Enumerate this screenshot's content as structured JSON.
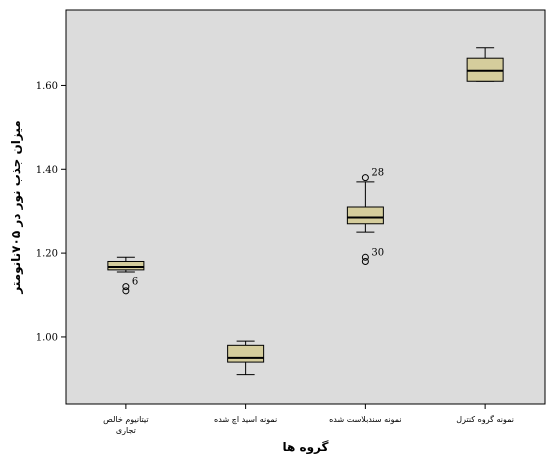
{
  "chart_data": {
    "type": "boxplot",
    "xlabel": "گروه ها",
    "ylabel": "میزان جذب نور در ۷۰۵نانومتر",
    "ylim": [
      0.84,
      1.78
    ],
    "yticks": [
      "1.00",
      "1.20",
      "1.40",
      "1.60"
    ],
    "colors": {
      "plot_bg": "#dcdcdc",
      "box_fill": "#d5cd9c",
      "stroke": "#000000"
    },
    "categories": [
      {
        "label_lines": [
          "تیتانیوم خالص",
          "تجاری"
        ],
        "min": 1.155,
        "q1": 1.16,
        "median": 1.167,
        "q3": 1.18,
        "max": 1.19,
        "outliers": [
          {
            "value": 1.12,
            "label": "6"
          },
          {
            "value": 1.11,
            "label": ""
          }
        ]
      },
      {
        "label_lines": [
          "نمونه اسید اچ شده"
        ],
        "min": 0.91,
        "q1": 0.94,
        "median": 0.95,
        "q3": 0.98,
        "max": 0.99,
        "outliers": []
      },
      {
        "label_lines": [
          "نمونه سندبلاست شده"
        ],
        "min": 1.25,
        "q1": 1.27,
        "median": 1.285,
        "q3": 1.31,
        "max": 1.37,
        "outliers": [
          {
            "value": 1.38,
            "label": "28"
          },
          {
            "value": 1.19,
            "label": "30"
          },
          {
            "value": 1.18,
            "label": ""
          }
        ]
      },
      {
        "label_lines": [
          "نمونه گروه کنترل"
        ],
        "min": 1.61,
        "q1": 1.61,
        "median": 1.635,
        "q3": 1.665,
        "max": 1.69,
        "outliers": []
      }
    ]
  }
}
